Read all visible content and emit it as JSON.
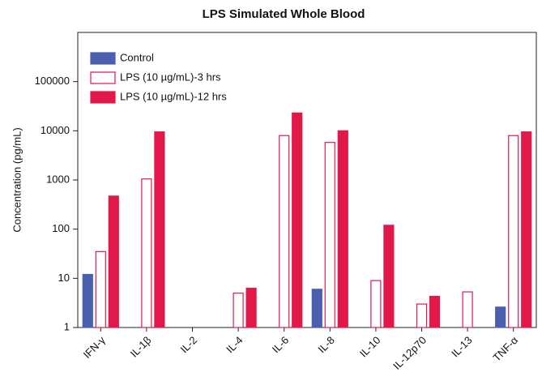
{
  "chart_data": {
    "type": "bar",
    "title": "LPS Simulated Whole Blood",
    "y_label": "Concentration (pg/mL)",
    "categories": [
      "IFN-γ",
      "IL-1β",
      "IL-2",
      "IL-4",
      "IL-6",
      "IL-8",
      "IL-10",
      "IL-12p70",
      "IL-13",
      "TNF-α"
    ],
    "series": [
      {
        "name": "Control",
        "color": "#4a5fae",
        "fill": "#4a5fae",
        "values": [
          12,
          null,
          null,
          null,
          null,
          6,
          null,
          null,
          null,
          2.6
        ]
      },
      {
        "name": "LPS (10 µg/mL)-3 hrs",
        "color": "#e0194a",
        "fill": "#ffffff",
        "values": [
          35,
          1050,
          null,
          5,
          8000,
          5800,
          9,
          3,
          5.3,
          8000
        ]
      },
      {
        "name": "LPS (10 µg/mL)-12 hrs",
        "color": "#e0194a",
        "fill": "#e0194a",
        "values": [
          470,
          9500,
          null,
          6.3,
          23000,
          10000,
          120,
          4.3,
          null,
          9500
        ]
      }
    ],
    "log_scale": true,
    "ylim": [
      1,
      1000000
    ],
    "yticks": [
      1,
      10,
      100,
      1000,
      10000,
      100000
    ],
    "legend": "upper-left"
  }
}
